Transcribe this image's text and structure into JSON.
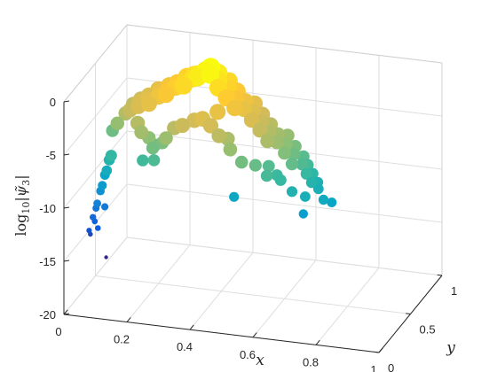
{
  "chart_data": {
    "type": "scatter",
    "projection": "3d",
    "title": "",
    "xlabel": "x",
    "ylabel": "y",
    "zlabel": "log10|ψ̃3|",
    "zlabel_parts": {
      "prefix": "log",
      "base": "10",
      "body": "|ψ̃",
      "sub": "3",
      "close": "|"
    },
    "xlim": [
      0,
      1
    ],
    "ylim": [
      0,
      1
    ],
    "zlim": [
      -20,
      0
    ],
    "xticks": [
      0,
      0.2,
      0.4,
      0.6,
      0.8,
      1
    ],
    "xtick_labels": [
      "0",
      "0.2",
      "0.4",
      "0.6",
      "0.8",
      "1"
    ],
    "yticks": [
      0,
      0.5,
      1
    ],
    "ytick_labels": [
      "0",
      "0.5",
      "1"
    ],
    "zticks": [
      -20,
      -15,
      -10,
      -5,
      0
    ],
    "ztick_labels": [
      "-20",
      "-15",
      "-10",
      "-5",
      "0"
    ],
    "grid": true,
    "box": true,
    "colormap": "parula",
    "colormap_stops": [
      "#352a87",
      "#0f5cdd",
      "#1481d6",
      "#06a4ca",
      "#2eb7a4",
      "#87bf77",
      "#d1bb59",
      "#fec832",
      "#f9fb0e"
    ],
    "color_by": "z",
    "points": [
      {
        "x": 0.02,
        "y": 0.32,
        "z": -14.7
      },
      {
        "x": 0.02,
        "y": 0.3,
        "z": -14.2
      },
      {
        "x": 0.03,
        "y": 0.34,
        "z": -13.6
      },
      {
        "x": 0.03,
        "y": 0.31,
        "z": -13.0
      },
      {
        "x": 0.03,
        "y": 0.36,
        "z": -12.5
      },
      {
        "x": 0.04,
        "y": 0.33,
        "z": -11.8
      },
      {
        "x": 0.04,
        "y": 0.38,
        "z": -11.0
      },
      {
        "x": 0.05,
        "y": 0.36,
        "z": -10.3
      },
      {
        "x": 0.05,
        "y": 0.4,
        "z": -9.6
      },
      {
        "x": 0.06,
        "y": 0.38,
        "z": -9.0
      },
      {
        "x": 0.06,
        "y": 0.42,
        "z": -8.3
      },
      {
        "x": 0.07,
        "y": 0.4,
        "z": -7.7
      },
      {
        "x": 0.09,
        "y": 0.22,
        "z": -15.9
      },
      {
        "x": 0.06,
        "y": 0.35,
        "z": -12.2
      },
      {
        "x": 0.05,
        "y": 0.29,
        "z": -13.8
      },
      {
        "x": 0.05,
        "y": 0.52,
        "z": -6.3
      },
      {
        "x": 0.06,
        "y": 0.55,
        "z": -5.8
      },
      {
        "x": 0.07,
        "y": 0.5,
        "z": -5.4
      },
      {
        "x": 0.08,
        "y": 0.58,
        "z": -5.0
      },
      {
        "x": 0.09,
        "y": 0.53,
        "z": -4.6
      },
      {
        "x": 0.1,
        "y": 0.6,
        "z": -4.2
      },
      {
        "x": 0.11,
        "y": 0.5,
        "z": -4.0
      },
      {
        "x": 0.12,
        "y": 0.62,
        "z": -3.8
      },
      {
        "x": 0.13,
        "y": 0.55,
        "z": -3.5
      },
      {
        "x": 0.14,
        "y": 0.48,
        "z": -3.4
      },
      {
        "x": 0.15,
        "y": 0.6,
        "z": -3.2
      },
      {
        "x": 0.16,
        "y": 0.52,
        "z": -3.0
      },
      {
        "x": 0.17,
        "y": 0.65,
        "z": -2.9
      },
      {
        "x": 0.18,
        "y": 0.45,
        "z": -2.8
      },
      {
        "x": 0.19,
        "y": 0.58,
        "z": -2.6
      },
      {
        "x": 0.2,
        "y": 0.5,
        "z": -2.4
      },
      {
        "x": 0.21,
        "y": 0.62,
        "z": -2.2
      },
      {
        "x": 0.22,
        "y": 0.55,
        "z": -2.0
      },
      {
        "x": 0.23,
        "y": 0.47,
        "z": -1.9
      },
      {
        "x": 0.24,
        "y": 0.6,
        "z": -1.7
      },
      {
        "x": 0.25,
        "y": 0.52,
        "z": -1.5
      },
      {
        "x": 0.26,
        "y": 0.65,
        "z": -1.4
      },
      {
        "x": 0.27,
        "y": 0.57,
        "z": -1.2
      },
      {
        "x": 0.28,
        "y": 0.5,
        "z": -1.1
      },
      {
        "x": 0.29,
        "y": 0.62,
        "z": -0.9
      },
      {
        "x": 0.3,
        "y": 0.55,
        "z": -0.7
      },
      {
        "x": 0.31,
        "y": 0.58,
        "z": -0.5
      },
      {
        "x": 0.32,
        "y": 0.52,
        "z": -0.3
      },
      {
        "x": 0.33,
        "y": 0.6,
        "z": -0.2
      },
      {
        "x": 0.34,
        "y": 0.55,
        "z": 0.1
      },
      {
        "x": 0.35,
        "y": 0.58,
        "z": 0.3
      },
      {
        "x": 0.36,
        "y": 0.52,
        "z": 0.1
      },
      {
        "x": 0.37,
        "y": 0.6,
        "z": -0.3
      },
      {
        "x": 0.38,
        "y": 0.55,
        "z": -0.6
      },
      {
        "x": 0.39,
        "y": 0.5,
        "z": -0.9
      },
      {
        "x": 0.4,
        "y": 0.62,
        "z": -1.1
      },
      {
        "x": 0.41,
        "y": 0.56,
        "z": -1.3
      },
      {
        "x": 0.42,
        "y": 0.48,
        "z": -1.6
      },
      {
        "x": 0.43,
        "y": 0.6,
        "z": -1.8
      },
      {
        "x": 0.44,
        "y": 0.53,
        "z": -2.0
      },
      {
        "x": 0.45,
        "y": 0.46,
        "z": -2.3
      },
      {
        "x": 0.46,
        "y": 0.58,
        "z": -2.5
      },
      {
        "x": 0.47,
        "y": 0.51,
        "z": -2.7
      },
      {
        "x": 0.48,
        "y": 0.63,
        "z": -3.0
      },
      {
        "x": 0.49,
        "y": 0.55,
        "z": -3.2
      },
      {
        "x": 0.5,
        "y": 0.48,
        "z": -3.4
      },
      {
        "x": 0.51,
        "y": 0.6,
        "z": -3.7
      },
      {
        "x": 0.52,
        "y": 0.53,
        "z": -3.9
      },
      {
        "x": 0.53,
        "y": 0.46,
        "z": -4.1
      },
      {
        "x": 0.54,
        "y": 0.58,
        "z": -4.4
      },
      {
        "x": 0.55,
        "y": 0.51,
        "z": -4.6
      },
      {
        "x": 0.56,
        "y": 0.43,
        "z": -4.8
      },
      {
        "x": 0.57,
        "y": 0.55,
        "z": -5.0
      },
      {
        "x": 0.58,
        "y": 0.48,
        "z": -5.2
      },
      {
        "x": 0.59,
        "y": 0.6,
        "z": -5.4
      },
      {
        "x": 0.6,
        "y": 0.52,
        "z": -5.6
      },
      {
        "x": 0.61,
        "y": 0.45,
        "z": -5.9
      },
      {
        "x": 0.62,
        "y": 0.57,
        "z": -6.1
      },
      {
        "x": 0.63,
        "y": 0.5,
        "z": -6.3
      },
      {
        "x": 0.64,
        "y": 0.42,
        "z": -6.6
      },
      {
        "x": 0.65,
        "y": 0.55,
        "z": -6.8
      },
      {
        "x": 0.66,
        "y": 0.48,
        "z": -7.0
      },
      {
        "x": 0.67,
        "y": 0.52,
        "z": -7.3
      },
      {
        "x": 0.68,
        "y": 0.45,
        "z": -7.6
      },
      {
        "x": 0.69,
        "y": 0.5,
        "z": -7.9
      },
      {
        "x": 0.7,
        "y": 0.43,
        "z": -8.2
      },
      {
        "x": 0.71,
        "y": 0.48,
        "z": -8.5
      },
      {
        "x": 0.72,
        "y": 0.44,
        "z": -8.8
      },
      {
        "x": 0.15,
        "y": 0.42,
        "z": -4.5
      },
      {
        "x": 0.17,
        "y": 0.38,
        "z": -5.0
      },
      {
        "x": 0.19,
        "y": 0.4,
        "z": -5.6
      },
      {
        "x": 0.21,
        "y": 0.36,
        "z": -6.2
      },
      {
        "x": 0.23,
        "y": 0.41,
        "z": -6.0
      },
      {
        "x": 0.25,
        "y": 0.37,
        "z": -5.2
      },
      {
        "x": 0.18,
        "y": 0.35,
        "z": -7.4
      },
      {
        "x": 0.22,
        "y": 0.33,
        "z": -7.1
      },
      {
        "x": 0.2,
        "y": 0.45,
        "z": -6.6
      },
      {
        "x": 0.27,
        "y": 0.4,
        "z": -4.4
      },
      {
        "x": 0.3,
        "y": 0.38,
        "z": -3.9
      },
      {
        "x": 0.33,
        "y": 0.42,
        "z": -3.6
      },
      {
        "x": 0.36,
        "y": 0.4,
        "z": -3.2
      },
      {
        "x": 0.39,
        "y": 0.38,
        "z": -3.6
      },
      {
        "x": 0.42,
        "y": 0.36,
        "z": -4.3
      },
      {
        "x": 0.46,
        "y": 0.34,
        "z": -5.3
      },
      {
        "x": 0.5,
        "y": 0.32,
        "z": -6.2
      },
      {
        "x": 0.54,
        "y": 0.34,
        "z": -6.5
      },
      {
        "x": 0.58,
        "y": 0.32,
        "z": -7.2
      },
      {
        "x": 0.62,
        "y": 0.34,
        "z": -7.6
      },
      {
        "x": 0.66,
        "y": 0.32,
        "z": -8.4
      },
      {
        "x": 0.7,
        "y": 0.33,
        "z": -8.8
      },
      {
        "x": 0.48,
        "y": 0.3,
        "z": -9.4
      },
      {
        "x": 0.7,
        "y": 0.3,
        "z": -10.2
      },
      {
        "x": 0.75,
        "y": 0.37,
        "z": -9.2
      },
      {
        "x": 0.77,
        "y": 0.4,
        "z": -9.6
      },
      {
        "x": 0.57,
        "y": 0.4,
        "z": -6.9
      },
      {
        "x": 0.6,
        "y": 0.38,
        "z": -7.5
      },
      {
        "x": 0.44,
        "y": 0.4,
        "z": -4.8
      },
      {
        "x": 0.4,
        "y": 0.44,
        "z": -2.7
      }
    ]
  }
}
